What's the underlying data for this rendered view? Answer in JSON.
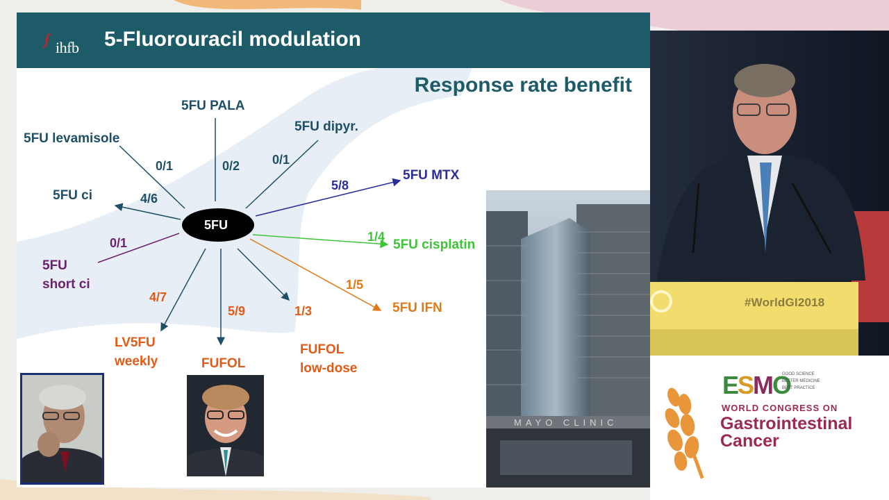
{
  "slide": {
    "logo": "ihfb",
    "title": "5-Fluorouracil modulation",
    "subtitle": "Response rate benefit",
    "center": "5FU",
    "nodes": {
      "pala": "5FU PALA",
      "dipyr": "5FU dipyr.",
      "levamisole": "5FU levamisole",
      "mtx": "5FU MTX",
      "ci": "5FU ci",
      "cisplatin": "5FU cisplatin",
      "short_ci_line1": "5FU",
      "short_ci_line2": "short ci",
      "ifn": "5FU IFN",
      "lv5fu_line1": "LV5FU",
      "lv5fu_line2": "weekly",
      "fufol": "FUFOL",
      "fufol_low_line1": "FUFOL",
      "fufol_low_line2": "low-dose"
    },
    "ratios": {
      "levamisole": "0/1",
      "pala": "0/2",
      "dipyr": "0/1",
      "mtx": "5/8",
      "ci": "4/6",
      "cisplatin": "1/4",
      "short_ci": "0/1",
      "ifn": "1/5",
      "lv5fu": "4/7",
      "fufol": "5/9",
      "fufol_low": "1/3"
    }
  },
  "sign_text": "MAYO CLINIC",
  "hashtag": "#WorldGI2018",
  "branding": {
    "logo_e": "E",
    "logo_s": "S",
    "logo_m": "M",
    "logo_o": "O",
    "tagline1": "GOOD SCIENCE",
    "tagline2": "BETTER MEDICINE",
    "tagline3": "BEST PRACTICE",
    "congress": "WORLD CONGRESS ON",
    "event_line1": "Gastrointestinal",
    "event_line2": "Cancer"
  },
  "colors": {
    "header": "#1e5b69",
    "mtx": "#2b2e9a",
    "cisplatin": "#3ec437",
    "ifn": "#e07a18",
    "orange_text": "#e25a16",
    "purple": "#6b1f70",
    "dark_arrows": "#1e4f66"
  }
}
